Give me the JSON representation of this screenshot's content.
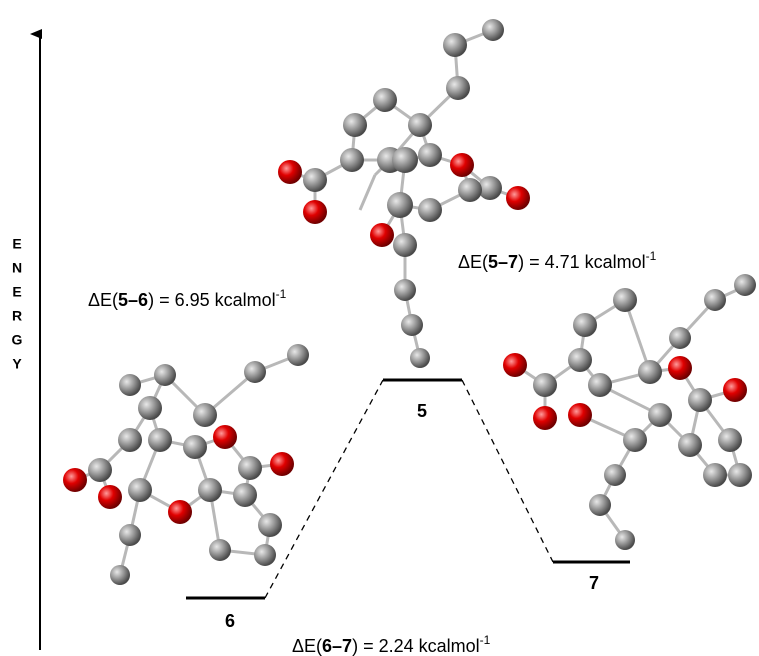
{
  "axis_label": [
    "E",
    "N",
    "E",
    "R",
    "G",
    "Y"
  ],
  "states": [
    {
      "label": "5"
    },
    {
      "label": "6"
    },
    {
      "label": "7"
    }
  ],
  "annotations": [
    {
      "prefix": "ΔE(",
      "bold": "5–6",
      "suffix": ") = 6.95 kcalmol",
      "superscript": "-1"
    },
    {
      "prefix": "ΔE(",
      "bold": "5–7",
      "suffix": ") = 4.71 kcalmol",
      "superscript": "-1"
    },
    {
      "prefix": "ΔE(",
      "bold": "6–7",
      "suffix": ") = 2.24 kcalmol",
      "superscript": "-1"
    }
  ]
}
